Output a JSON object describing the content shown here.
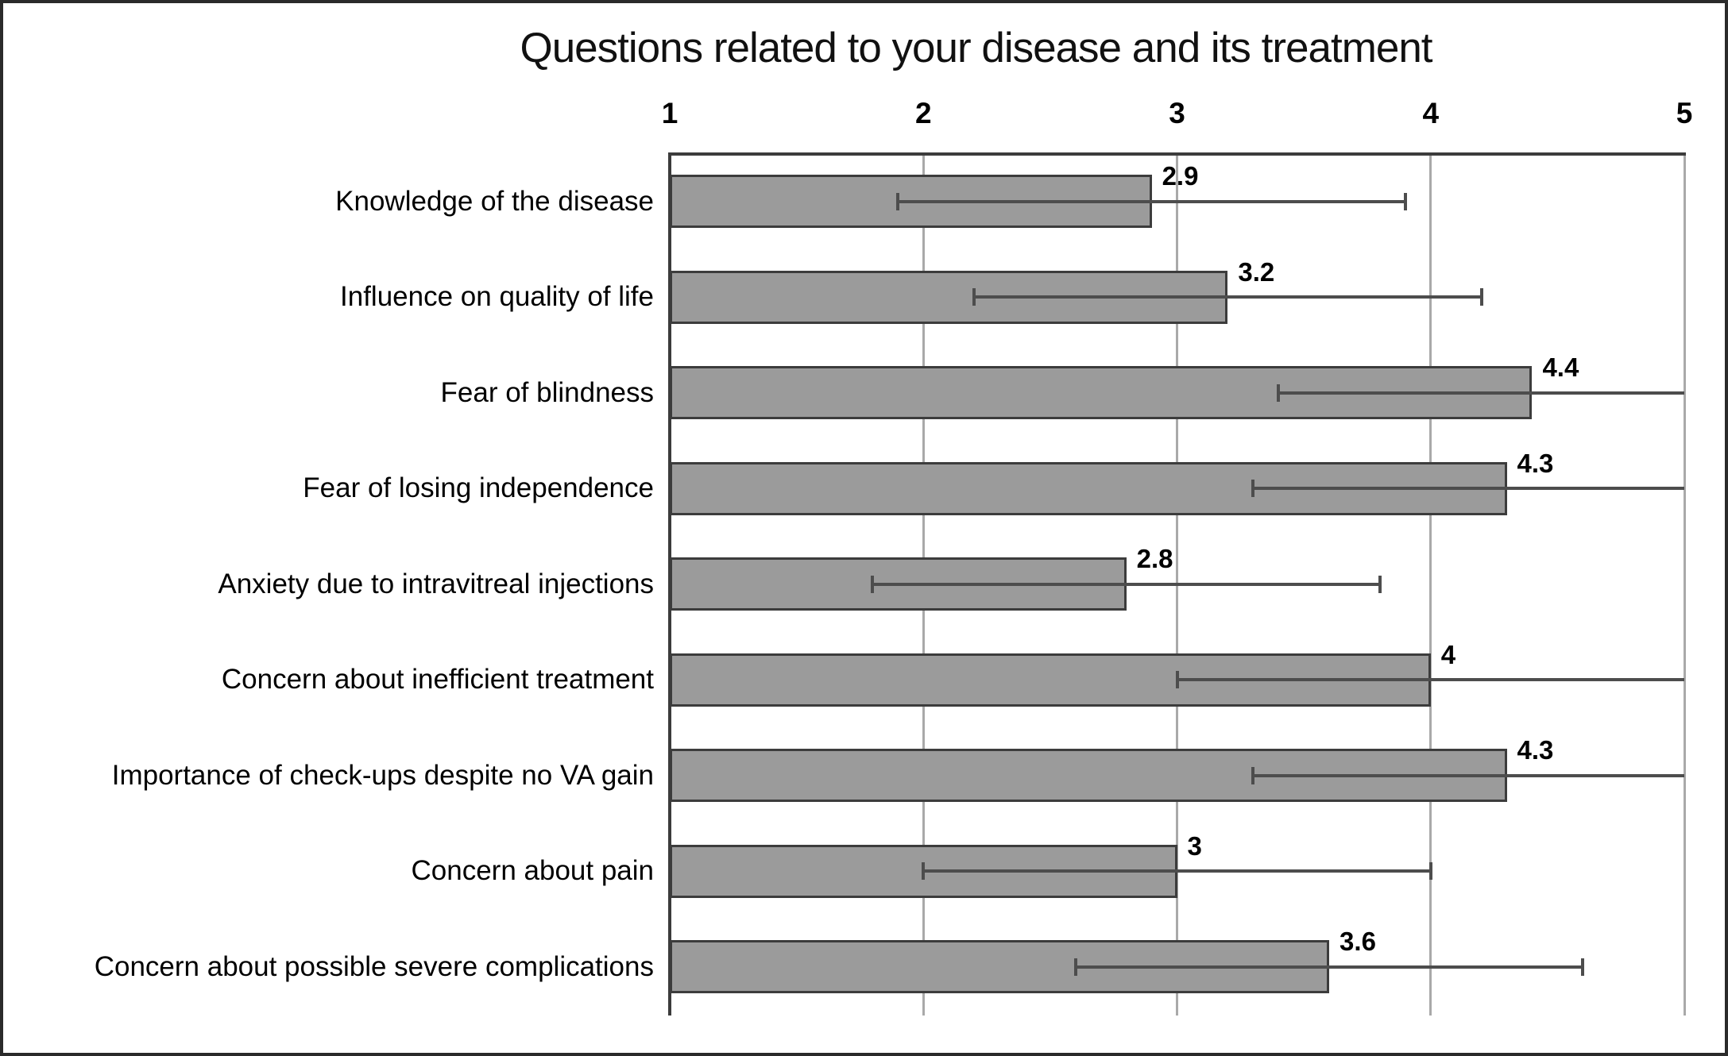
{
  "chart_data": {
    "type": "bar",
    "orientation": "horizontal",
    "title": "Questions related to your disease and its treatment",
    "categories": [
      "Knowledge of the disease",
      "Influence on quality of life",
      "Fear of blindness",
      "Fear of losing independence",
      "Anxiety due to intravitreal injections",
      "Concern about inefficient treatment",
      "Importance of check-ups despite no VA gain",
      "Concern about pain",
      "Concern about possible severe complications"
    ],
    "values": [
      2.9,
      3.2,
      4.4,
      4.3,
      2.8,
      4,
      4.3,
      3,
      3.6
    ],
    "value_labels": [
      "2.9",
      "3.2",
      "4.4",
      "4.3",
      "2.8",
      "4",
      "4.3",
      "3",
      "3.6"
    ],
    "error_bars": {
      "plus_minus": 1.0,
      "low": [
        1.9,
        2.2,
        3.4,
        3.3,
        1.8,
        3.0,
        3.3,
        2.0,
        2.6
      ],
      "high": [
        3.9,
        4.2,
        5.0,
        5.0,
        3.8,
        5.0,
        5.0,
        4.0,
        4.6
      ],
      "high_clipped_at_axis_max": [
        false,
        false,
        true,
        true,
        false,
        true,
        true,
        false,
        false
      ]
    },
    "xlim": [
      1,
      5
    ],
    "x_ticks": [
      "1",
      "2",
      "3",
      "4",
      "5"
    ],
    "gridlines_at": [
      2,
      3,
      4
    ],
    "grid": "vertical",
    "legend": null,
    "colors": {
      "bar_fill": "#9b9b9b",
      "bar_border": "#3c3c3c",
      "error_bar": "#4d4d4d",
      "gridline": "#a9a9a9",
      "axis_line": "#3c3c3c",
      "background": "#ffffff",
      "figure_border": "#2b2b2b",
      "text": "#000000"
    }
  }
}
